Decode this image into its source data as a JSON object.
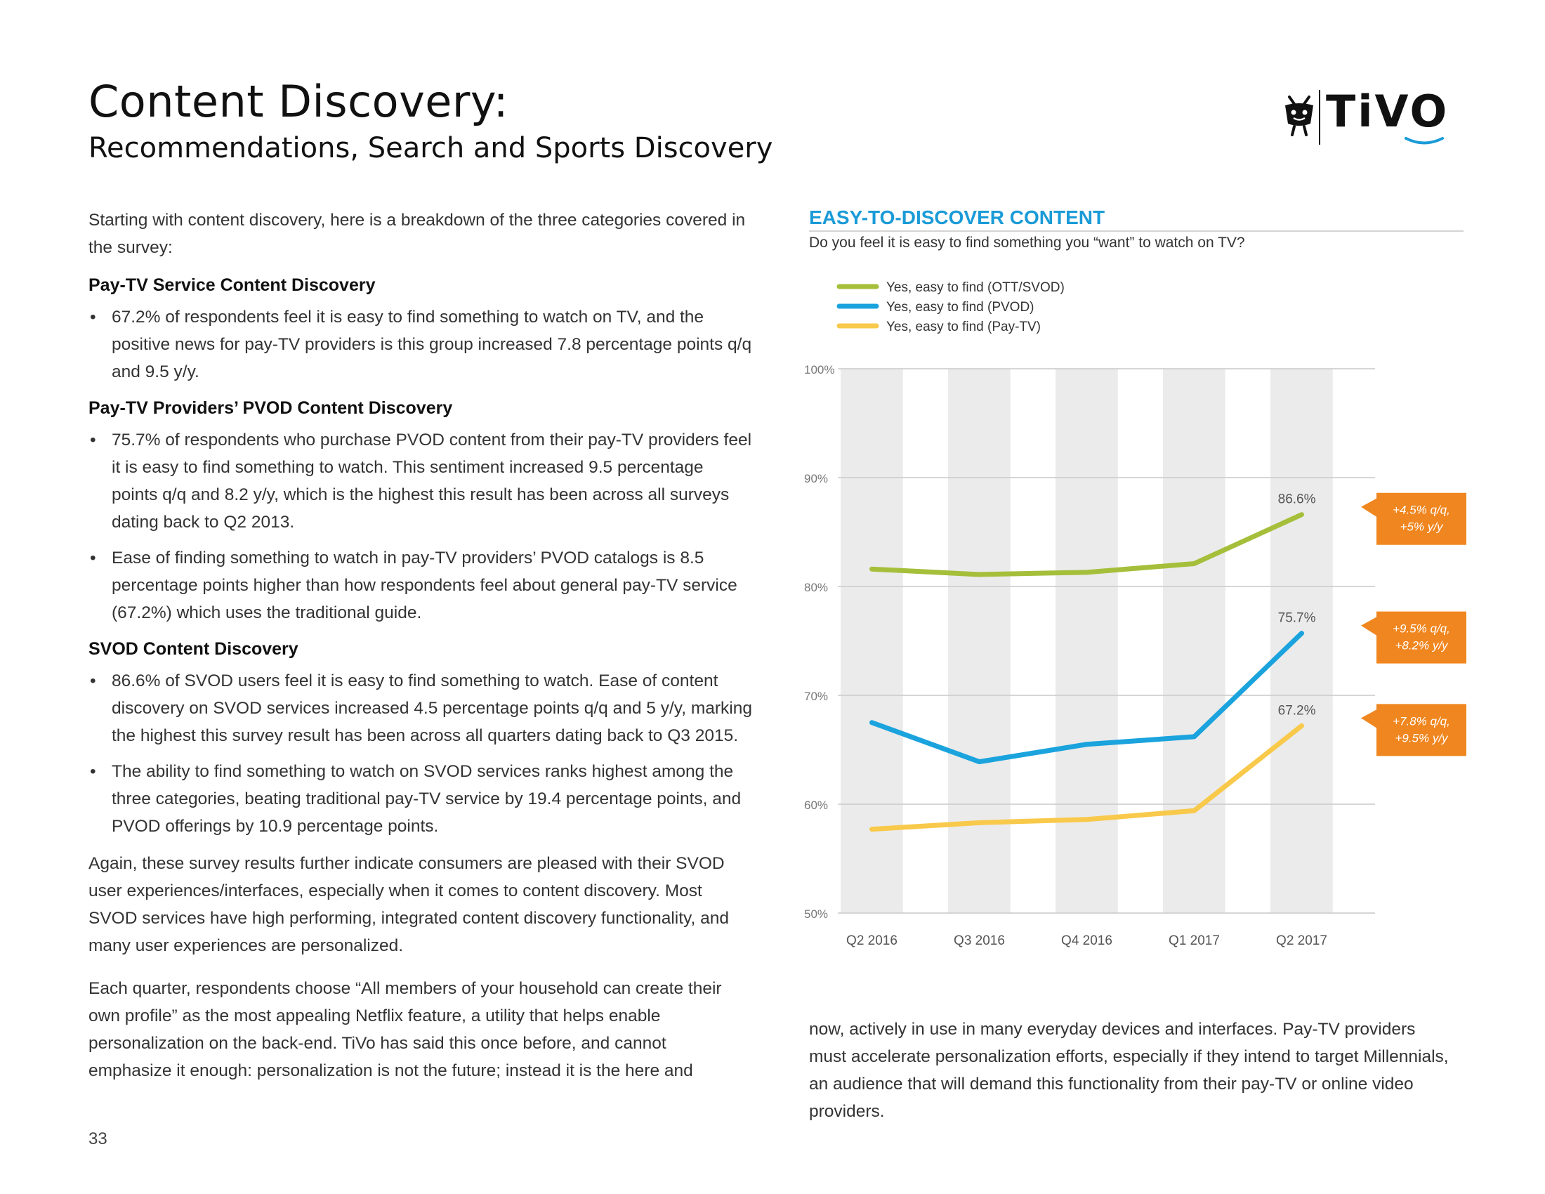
{
  "header": {
    "title": "Content Discovery:",
    "subtitle": "Recommendations, Search and Sports Discovery",
    "logo_text": "TiVO"
  },
  "body": {
    "intro": "Starting with content discovery, here is a breakdown of the three categories covered in the survey:",
    "sections": [
      {
        "heading": "Pay-TV Service Content Discovery",
        "bullets": [
          "67.2% of respondents feel it is easy to find something to watch on TV, and the positive news for pay-TV providers is this group increased 7.8 percentage points q/q and 9.5 y/y."
        ]
      },
      {
        "heading": "Pay-TV Providers’ PVOD Content Discovery",
        "bullets": [
          "75.7% of respondents who purchase PVOD content from their pay-TV providers feel it is easy to find something to watch. This sentiment increased 9.5 percentage points q/q and 8.2 y/y, which is the highest this result has been across all surveys dating back to Q2 2013.",
          "Ease of finding something to watch in pay-TV providers’ PVOD catalogs is 8.5 percentage points higher than how respondents feel about general pay-TV service (67.2%) which uses the traditional guide."
        ]
      },
      {
        "heading": "SVOD Content Discovery",
        "bullets": [
          "86.6% of SVOD users feel it is easy to find something to watch. Ease of content discovery on SVOD services increased 4.5 percentage points q/q and 5 y/y, marking the highest this survey result has been across all quarters dating back to Q3 2015.",
          "The ability to find something to watch on SVOD services ranks highest among the three categories, beating traditional pay-TV service by 19.4 percentage points, and PVOD offerings by 10.9 percentage points."
        ]
      }
    ],
    "paragraph_again": "Again, these survey results further indicate consumers are pleased with their SVOD user experiences/interfaces, especially when it comes to content discovery. Most SVOD services have high performing, integrated content discovery functionality, and many user experiences are personalized.",
    "paragraph_each": "Each quarter, respondents choose “All members of your household can create their own profile” as the most appealing Netflix feature, a utility that helps enable personalization on the back-end. TiVo has said this once before, and cannot emphasize it enough: personalization is not the future; instead it is the here and",
    "paragraph_continued": "now, actively in use in many everyday devices and interfaces. Pay-TV providers must accelerate personalization efforts, especially if they intend to target Millennials, an audience that will demand this functionality from their pay-TV or online video providers.",
    "page_number": "33"
  },
  "chart_data": {
    "type": "line",
    "title": "EASY-TO-DISCOVER CONTENT",
    "subtitle": "Do you feel it is easy to find something you “want” to watch on TV?",
    "categories": [
      "Q2 2016",
      "Q3 2016",
      "Q4 2016",
      "Q1 2017",
      "Q2 2017"
    ],
    "ylim": [
      50,
      100
    ],
    "yticks": [
      50,
      60,
      70,
      80,
      90,
      100
    ],
    "ytick_labels": [
      "50%",
      "60%",
      "70%",
      "80%",
      "90%",
      "100%"
    ],
    "legend_position": "top-left",
    "grid": true,
    "series": [
      {
        "name": "Yes, easy to find (OTT/SVOD)",
        "color": "#a5bf3b",
        "values": [
          81.6,
          81.1,
          81.3,
          82.1,
          86.6
        ],
        "end_label": "86.6%",
        "callout": [
          "+4.5% q/q,",
          "+5% y/y"
        ]
      },
      {
        "name": "Yes, easy to find (PVOD)",
        "color": "#1aa3dd",
        "values": [
          67.5,
          63.9,
          65.5,
          66.2,
          75.7
        ],
        "end_label": "75.7%",
        "callout": [
          "+9.5% q/q,",
          "+8.2% y/y"
        ]
      },
      {
        "name": "Yes, easy to find (Pay-TV)",
        "color": "#f8c94a",
        "values": [
          57.7,
          58.3,
          58.6,
          59.4,
          67.2
        ],
        "end_label": "67.2%",
        "callout": [
          "+7.8% q/q,",
          "+9.5% y/y"
        ]
      }
    ],
    "callout_color": "#f0861f"
  }
}
